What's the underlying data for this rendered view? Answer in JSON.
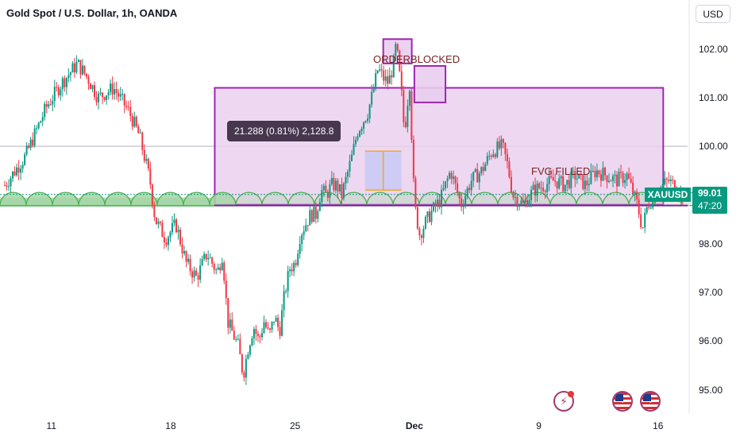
{
  "header": {
    "title": "Gold Spot / U.S. Dollar, 1h, OANDA",
    "currency_button": "USD"
  },
  "annotations": {
    "orderblocked": "ORDERBLOCKED",
    "fvg_filled": "FVG FILLED",
    "measure_label": "21.288 (0.81%) 2,128.8"
  },
  "price_label": {
    "symbol": "XAUUSD",
    "price": "99.01",
    "countdown": "47:20"
  },
  "icons": [
    "lightning-icon",
    "us-flag-icon",
    "us-flag-icon"
  ],
  "colors": {
    "up": "#089981",
    "down": "#f23645",
    "zone_fill": "#e9cdee",
    "zone_border": "#9c27b0",
    "arc_fill": "#a5d6a7",
    "arc_stroke": "#4caf50"
  },
  "chart_data": {
    "type": "candlestick",
    "title": "Gold Spot / U.S. Dollar, 1h, OANDA",
    "y_ticks": [
      "102.00",
      "101.00",
      "100.00",
      "99.00",
      "98.00",
      "97.00",
      "96.00",
      "95.00"
    ],
    "x_ticks": [
      "11",
      "18",
      "25",
      "Dec",
      "9",
      "16"
    ],
    "ylim": [
      94.75,
      102.5
    ],
    "path_points": [
      [
        0,
        99.2
      ],
      [
        4,
        99.8
      ],
      [
        8,
        100.8
      ],
      [
        11,
        101.3
      ],
      [
        14,
        101.7
      ],
      [
        16,
        101.4
      ],
      [
        18,
        101.0
      ],
      [
        21,
        101.2
      ],
      [
        24,
        100.7
      ],
      [
        26,
        100.2
      ],
      [
        28,
        99.3
      ],
      [
        29,
        98.5
      ],
      [
        31,
        98.1
      ],
      [
        33,
        98.4
      ],
      [
        35,
        97.6
      ],
      [
        37,
        97.3
      ],
      [
        39,
        97.8
      ],
      [
        41,
        97.4
      ],
      [
        42,
        97.8
      ],
      [
        43,
        96.4
      ],
      [
        45,
        95.9
      ],
      [
        46,
        95.3
      ],
      [
        47,
        95.9
      ],
      [
        48,
        96.3
      ],
      [
        49,
        96.0
      ],
      [
        50,
        96.4
      ],
      [
        51,
        96.1
      ],
      [
        52,
        96.5
      ],
      [
        53,
        96.2
      ],
      [
        54,
        97.0
      ],
      [
        55,
        97.5
      ],
      [
        56,
        97.6
      ],
      [
        57,
        98.2
      ],
      [
        58,
        98.4
      ],
      [
        59,
        98.6
      ],
      [
        60,
        98.6
      ],
      [
        61,
        99.1
      ],
      [
        62,
        99.0
      ],
      [
        63,
        99.2
      ],
      [
        64,
        99.2
      ],
      [
        65,
        99.0
      ],
      [
        66,
        99.4
      ],
      [
        67,
        99.8
      ],
      [
        68,
        100.3
      ],
      [
        69,
        100.5
      ],
      [
        70,
        100.7
      ],
      [
        71,
        101.1
      ],
      [
        72,
        101.6
      ],
      [
        73,
        101.4
      ],
      [
        74,
        101.3
      ],
      [
        75,
        101.7
      ],
      [
        75.5,
        102.1
      ],
      [
        76,
        101.6
      ],
      [
        76.5,
        101.1
      ],
      [
        77,
        100.4
      ],
      [
        77.5,
        100.6
      ],
      [
        78,
        101.5
      ],
      [
        79,
        98.8
      ],
      [
        80,
        98.2
      ],
      [
        81,
        98.4
      ],
      [
        82,
        98.6
      ],
      [
        84,
        98.9
      ],
      [
        86,
        99.5
      ],
      [
        88,
        98.8
      ],
      [
        90,
        99.3
      ],
      [
        92,
        99.5
      ],
      [
        94,
        99.9
      ],
      [
        96,
        100.0
      ],
      [
        97,
        99.6
      ],
      [
        98,
        99.0
      ],
      [
        100,
        98.8
      ],
      [
        102,
        99.1
      ],
      [
        104,
        99.2
      ],
      [
        106,
        99.3
      ],
      [
        108,
        99.2
      ],
      [
        110,
        99.4
      ],
      [
        112,
        99.2
      ],
      [
        114,
        99.5
      ],
      [
        116,
        99.4
      ],
      [
        118,
        99.3
      ],
      [
        120,
        99.4
      ],
      [
        122,
        98.8
      ],
      [
        123,
        98.3
      ],
      [
        124,
        98.8
      ],
      [
        126,
        99.1
      ],
      [
        128,
        99.3
      ],
      [
        130,
        99.1
      ],
      [
        131,
        99.0
      ]
    ],
    "x_tick_index": [
      9,
      32,
      56,
      79,
      103,
      126
    ],
    "zones": [
      {
        "x0": 40.5,
        "x1": 127,
        "y0": 98.8,
        "y1": 101.2
      },
      {
        "x0": 73,
        "x1": 78.5,
        "y0": 101.7,
        "y1": 102.2
      },
      {
        "x0": 79,
        "x1": 85,
        "y0": 100.9,
        "y1": 101.65
      }
    ],
    "measure": {
      "x0": 69.5,
      "x1": 76.5,
      "y0": 99.1,
      "y1": 99.9
    },
    "hline": 100.0,
    "current_price": 99.01,
    "arc_level": 98.8
  }
}
